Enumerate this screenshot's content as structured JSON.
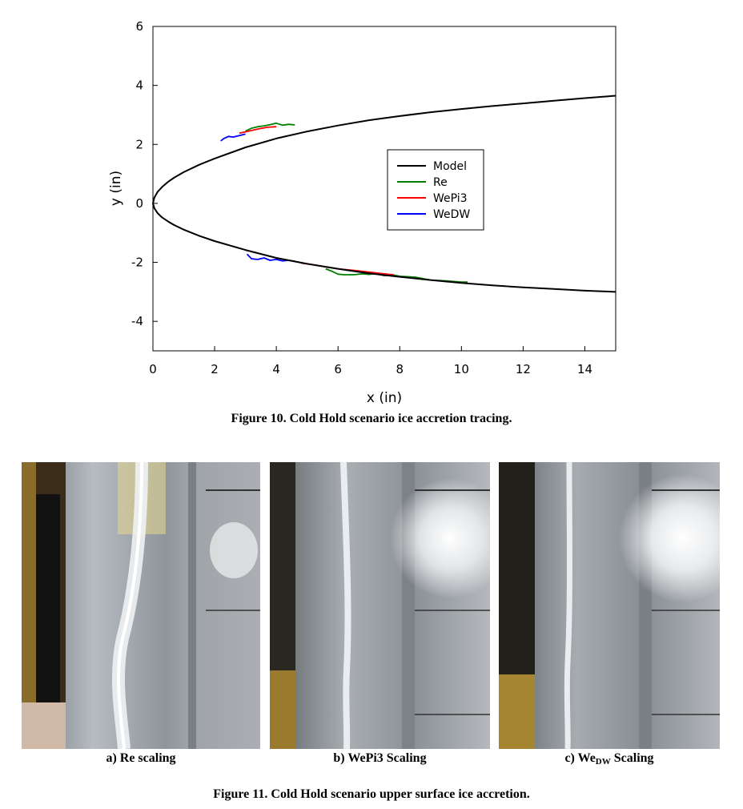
{
  "figure10": {
    "caption": "Figure 10.  Cold Hold scenario ice accretion tracing.",
    "chart_data": {
      "type": "line",
      "xlabel": "x (in)",
      "ylabel": "y (in)",
      "xlim": [
        0,
        15
      ],
      "ylim": [
        -5,
        6
      ],
      "xticks": [
        0,
        2,
        4,
        6,
        8,
        10,
        12,
        14
      ],
      "yticks": [
        -4,
        -2,
        0,
        2,
        4,
        6
      ],
      "grid": false,
      "legend_position": "center-right",
      "series": [
        {
          "name": "Model",
          "color": "#000000",
          "segments": [
            [
              [
                15,
                3.65
              ],
              [
                14,
                3.57
              ],
              [
                13,
                3.48
              ],
              [
                12,
                3.39
              ],
              [
                11,
                3.3
              ],
              [
                10,
                3.2
              ],
              [
                9,
                3.09
              ],
              [
                8,
                2.96
              ],
              [
                7,
                2.82
              ],
              [
                6,
                2.64
              ],
              [
                5,
                2.44
              ],
              [
                4,
                2.2
              ],
              [
                3,
                1.9
              ],
              [
                2,
                1.52
              ],
              [
                1.5,
                1.31
              ],
              [
                1,
                1.06
              ],
              [
                0.7,
                0.88
              ],
              [
                0.5,
                0.74
              ],
              [
                0.3,
                0.56
              ],
              [
                0.15,
                0.39
              ],
              [
                0.05,
                0.2
              ],
              [
                0,
                0
              ],
              [
                0.05,
                -0.17
              ],
              [
                0.15,
                -0.33
              ],
              [
                0.3,
                -0.48
              ],
              [
                0.5,
                -0.62
              ],
              [
                0.7,
                -0.74
              ],
              [
                1,
                -0.89
              ],
              [
                1.5,
                -1.1
              ],
              [
                2,
                -1.28
              ],
              [
                3,
                -1.58
              ],
              [
                4,
                -1.85
              ],
              [
                5,
                -2.05
              ],
              [
                6,
                -2.22
              ],
              [
                7,
                -2.37
              ],
              [
                8,
                -2.49
              ],
              [
                9,
                -2.6
              ],
              [
                10,
                -2.7
              ],
              [
                11,
                -2.78
              ],
              [
                12,
                -2.85
              ],
              [
                13,
                -2.9
              ],
              [
                14,
                -2.96
              ],
              [
                15,
                -3.0
              ]
            ]
          ]
        },
        {
          "name": "Re",
          "color": "#007f00",
          "segments": [
            [
              [
                3.0,
                2.45
              ],
              [
                3.2,
                2.55
              ],
              [
                3.4,
                2.6
              ],
              [
                3.6,
                2.63
              ],
              [
                3.8,
                2.67
              ],
              [
                4.0,
                2.72
              ],
              [
                4.2,
                2.65
              ],
              [
                4.4,
                2.68
              ],
              [
                4.6,
                2.66
              ]
            ],
            [
              [
                5.6,
                -2.22
              ],
              [
                5.8,
                -2.3
              ],
              [
                6.0,
                -2.4
              ],
              [
                6.2,
                -2.42
              ],
              [
                6.5,
                -2.42
              ],
              [
                6.8,
                -2.39
              ],
              [
                7.0,
                -2.41
              ],
              [
                7.2,
                -2.38
              ],
              [
                7.5,
                -2.45
              ],
              [
                7.8,
                -2.43
              ],
              [
                8.0,
                -2.47
              ],
              [
                8.5,
                -2.5
              ],
              [
                9.0,
                -2.6
              ],
              [
                9.5,
                -2.63
              ],
              [
                10.0,
                -2.67
              ],
              [
                10.2,
                -2.67
              ]
            ]
          ]
        },
        {
          "name": "WePi3",
          "color": "#ff0000",
          "segments": [
            [
              [
                2.8,
                2.38
              ],
              [
                3.1,
                2.45
              ],
              [
                3.4,
                2.52
              ],
              [
                3.7,
                2.58
              ],
              [
                4.0,
                2.6
              ]
            ],
            [
              [
                4.8,
                -2.02
              ],
              [
                5.2,
                -2.08
              ],
              [
                5.6,
                -2.15
              ],
              [
                6.0,
                -2.22
              ],
              [
                6.5,
                -2.27
              ],
              [
                7.0,
                -2.33
              ],
              [
                7.5,
                -2.39
              ],
              [
                7.8,
                -2.42
              ]
            ]
          ]
        },
        {
          "name": "WeDW",
          "color": "#0000ff",
          "segments": [
            [
              [
                2.2,
                2.12
              ],
              [
                2.3,
                2.2
              ],
              [
                2.45,
                2.27
              ],
              [
                2.6,
                2.25
              ],
              [
                2.8,
                2.3
              ],
              [
                3.0,
                2.35
              ]
            ],
            [
              [
                3.05,
                -1.72
              ],
              [
                3.2,
                -1.88
              ],
              [
                3.4,
                -1.9
              ],
              [
                3.6,
                -1.85
              ],
              [
                3.8,
                -1.93
              ],
              [
                4.0,
                -1.9
              ],
              [
                4.2,
                -1.95
              ],
              [
                4.4,
                -1.93
              ],
              [
                4.6,
                -1.96
              ]
            ]
          ]
        }
      ]
    }
  },
  "figure11": {
    "caption": "Figure 11.  Cold Hold scenario upper surface ice accretion.",
    "panels": [
      {
        "label_main": "a) Re scaling",
        "label_sub": "",
        "label_after": ""
      },
      {
        "label_main": "b) WePi3 Scaling",
        "label_sub": "",
        "label_after": ""
      },
      {
        "label_main": "c) We",
        "label_sub": "DW",
        "label_after": " Scaling"
      }
    ]
  }
}
